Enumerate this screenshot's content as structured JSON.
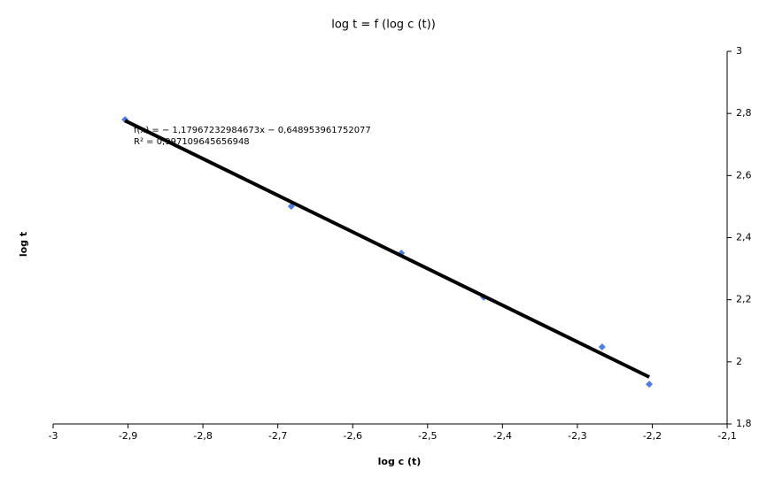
{
  "chart_data": {
    "type": "scatter",
    "title": "log t = f (log c (t))",
    "x_label": "log c (t)",
    "y_label": "log t",
    "annotations": [
      "f(x) = − 1,17967232984673x − 0,648953961752077",
      "R² = 0,997109645656948"
    ],
    "x": [
      -2.904,
      -2.682,
      -2.535,
      -2.425,
      -2.267,
      -2.204
    ],
    "series": [
      {
        "name": "log t",
        "color": "#4a7ee8",
        "values": [
          2.78,
          2.501,
          2.35,
          2.208,
          2.048,
          1.928
        ]
      }
    ],
    "trendline": {
      "slope": -1.17967232984673,
      "intercept": -0.648953961752077,
      "color": "#000000"
    },
    "xlim": [
      -3,
      -2.1
    ],
    "ylim": [
      1.8,
      3
    ],
    "xticks": [
      -3,
      {
        "value": -2.9,
        "label": "-2,9"
      },
      {
        "value": -2.8,
        "label": "-2,8"
      },
      {
        "value": -2.7,
        "label": "-2,7"
      },
      {
        "value": -2.6,
        "label": "-2,6"
      },
      {
        "value": -2.5,
        "label": "-2,5"
      },
      {
        "value": -2.4,
        "label": "-2,4"
      },
      {
        "value": -2.3,
        "label": "-2,3"
      },
      {
        "value": -2.2,
        "label": "-2,2"
      },
      {
        "value": -2.1,
        "label": "-2,1"
      }
    ],
    "yticks": [
      {
        "value": 1.8,
        "label": "1,8"
      },
      2,
      {
        "value": 2.2,
        "label": "2,2"
      },
      {
        "value": 2.4,
        "label": "2,4"
      },
      {
        "value": 2.6,
        "label": "2,6"
      },
      {
        "value": 2.8,
        "label": "2,8"
      },
      3
    ]
  }
}
